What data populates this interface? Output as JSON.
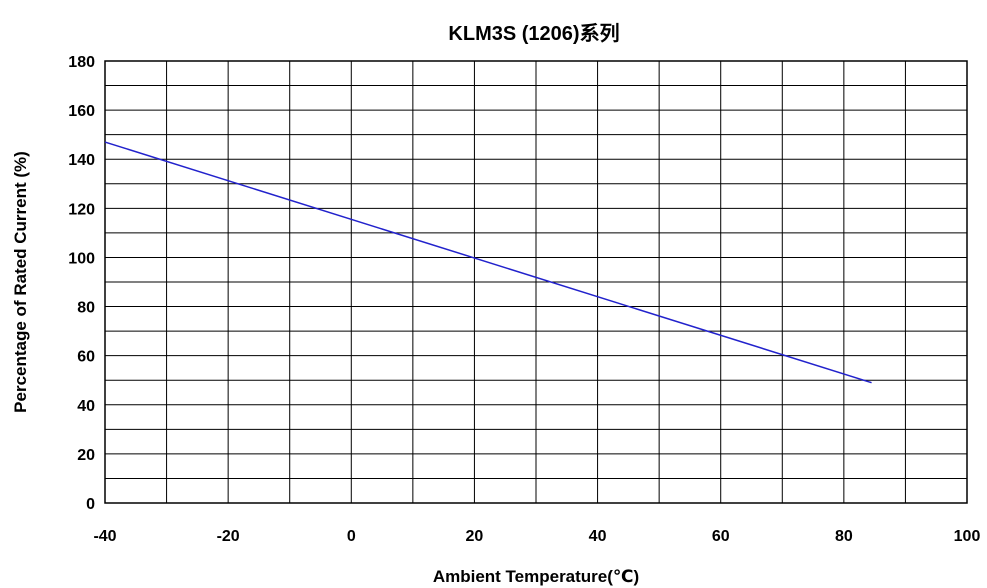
{
  "chart_data": {
    "type": "line",
    "title": "KLM3S (1206)系列",
    "xlabel": "Ambient Temperature(℃)",
    "ylabel": "Percentage of Rated Current (%)",
    "xlim": [
      -40,
      100
    ],
    "ylim": [
      0,
      180
    ],
    "x_ticks": [
      "-40",
      "-20",
      "0",
      "20",
      "40",
      "60",
      "80",
      "100"
    ],
    "y_ticks": [
      "0",
      "20",
      "40",
      "60",
      "80",
      "100",
      "120",
      "140",
      "160",
      "180"
    ],
    "grid": true,
    "series": [
      {
        "x": [
          -40,
          84.5
        ],
        "y": [
          147,
          49
        ],
        "color": "#2222cc"
      }
    ]
  }
}
